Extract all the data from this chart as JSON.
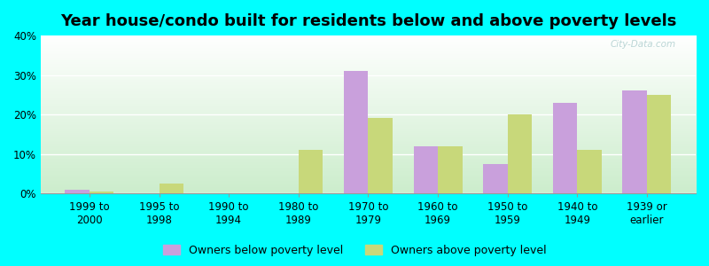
{
  "title": "Year house/condo built for residents below and above poverty levels",
  "categories": [
    "1999 to\n2000",
    "1995 to\n1998",
    "1990 to\n1994",
    "1980 to\n1989",
    "1970 to\n1979",
    "1960 to\n1969",
    "1950 to\n1959",
    "1940 to\n1949",
    "1939 or\nearlier"
  ],
  "below_poverty": [
    1,
    0,
    0,
    0,
    31,
    12,
    7.5,
    23,
    26
  ],
  "above_poverty": [
    0.5,
    2.5,
    0,
    11,
    19,
    12,
    20,
    11,
    25
  ],
  "bar_color_below": "#c9a0dc",
  "bar_color_above": "#c8d87a",
  "background_color": "#00ffff",
  "ylim": [
    0,
    40
  ],
  "yticks": [
    0,
    10,
    20,
    30,
    40
  ],
  "legend_below_label": "Owners below poverty level",
  "legend_above_label": "Owners above poverty level",
  "bar_width": 0.35,
  "title_fontsize": 13,
  "tick_fontsize": 8.5,
  "legend_fontsize": 9,
  "watermark": "City-Data.com"
}
